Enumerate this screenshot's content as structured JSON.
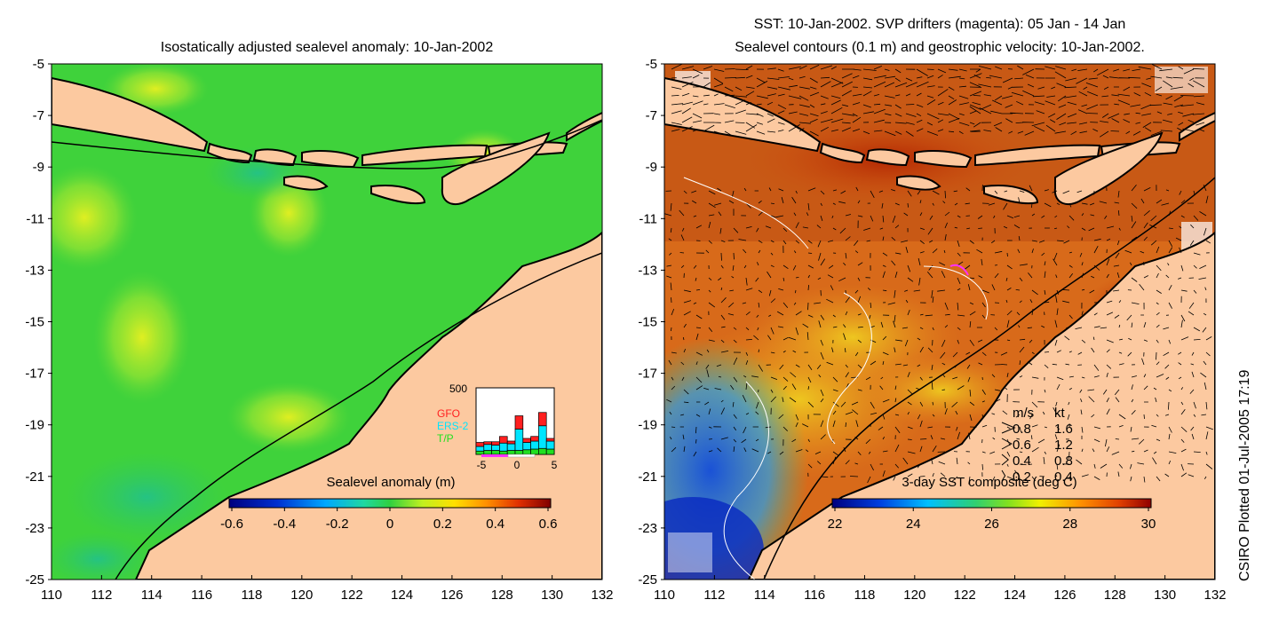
{
  "left_panel": {
    "title": "Isostatically adjusted sealevel anomaly: 10-Jan-2002",
    "colorbar": {
      "label": "Sealevel anomaly (m)",
      "ticks": [
        "-0.6",
        "-0.4",
        "-0.2",
        "0",
        "0.2",
        "0.4",
        "0.6"
      ],
      "range": [
        -0.6,
        0.6
      ]
    },
    "inset_histogram": {
      "ymax_label": "500",
      "legend": [
        {
          "name": "GFO",
          "color": "#ff2020"
        },
        {
          "name": "ERS-2",
          "color": "#00e5ff"
        },
        {
          "name": "T/P",
          "color": "#20e020"
        }
      ],
      "x_ticks": [
        "-5",
        "0",
        "5"
      ],
      "bins": [
        -5,
        -4,
        -3,
        -2,
        -1,
        0,
        1,
        2,
        3,
        4
      ],
      "tp": [
        25,
        30,
        30,
        25,
        30,
        30,
        35,
        40,
        45,
        40
      ],
      "ers2": [
        35,
        45,
        40,
        60,
        50,
        160,
        55,
        60,
        170,
        60
      ],
      "gfo": [
        30,
        20,
        25,
        50,
        20,
        100,
        30,
        35,
        100,
        20
      ]
    }
  },
  "right_panel": {
    "title_line1": "SST: 10-Jan-2002. SVP drifters (magenta): 05 Jan - 14 Jan",
    "title_line2": "Sealevel contours (0.1 m) and geostrophic velocity: 10-Jan-2002.",
    "colorbar": {
      "label": "3-day SST composite (deg C)",
      "ticks": [
        "22",
        "24",
        "26",
        "28",
        "30"
      ],
      "range": [
        22,
        30
      ]
    },
    "velocity_legend": {
      "header_ms": "m/s",
      "header_kt": "kt",
      "rows": [
        {
          "ms": "0.8",
          "kt": "1.6"
        },
        {
          "ms": "0.6",
          "kt": "1.2"
        },
        {
          "ms": "0.4",
          "kt": "0.8"
        },
        {
          "ms": "0.2",
          "kt": "0.4"
        }
      ]
    }
  },
  "axes": {
    "lon_ticks": [
      "110",
      "112",
      "114",
      "116",
      "118",
      "120",
      "122",
      "124",
      "126",
      "128",
      "130",
      "132"
    ],
    "lat_ticks": [
      "-5",
      "-7",
      "-9",
      "-11",
      "-13",
      "-15",
      "-17",
      "-19",
      "-21",
      "-23",
      "-25"
    ]
  },
  "colors": {
    "land": "#fcc9a0",
    "sla_bg": "#3fd23b",
    "sst_bg": "#e07a20"
  },
  "credit": "CSIRO Plotted 01-Jul-2005 17:19"
}
